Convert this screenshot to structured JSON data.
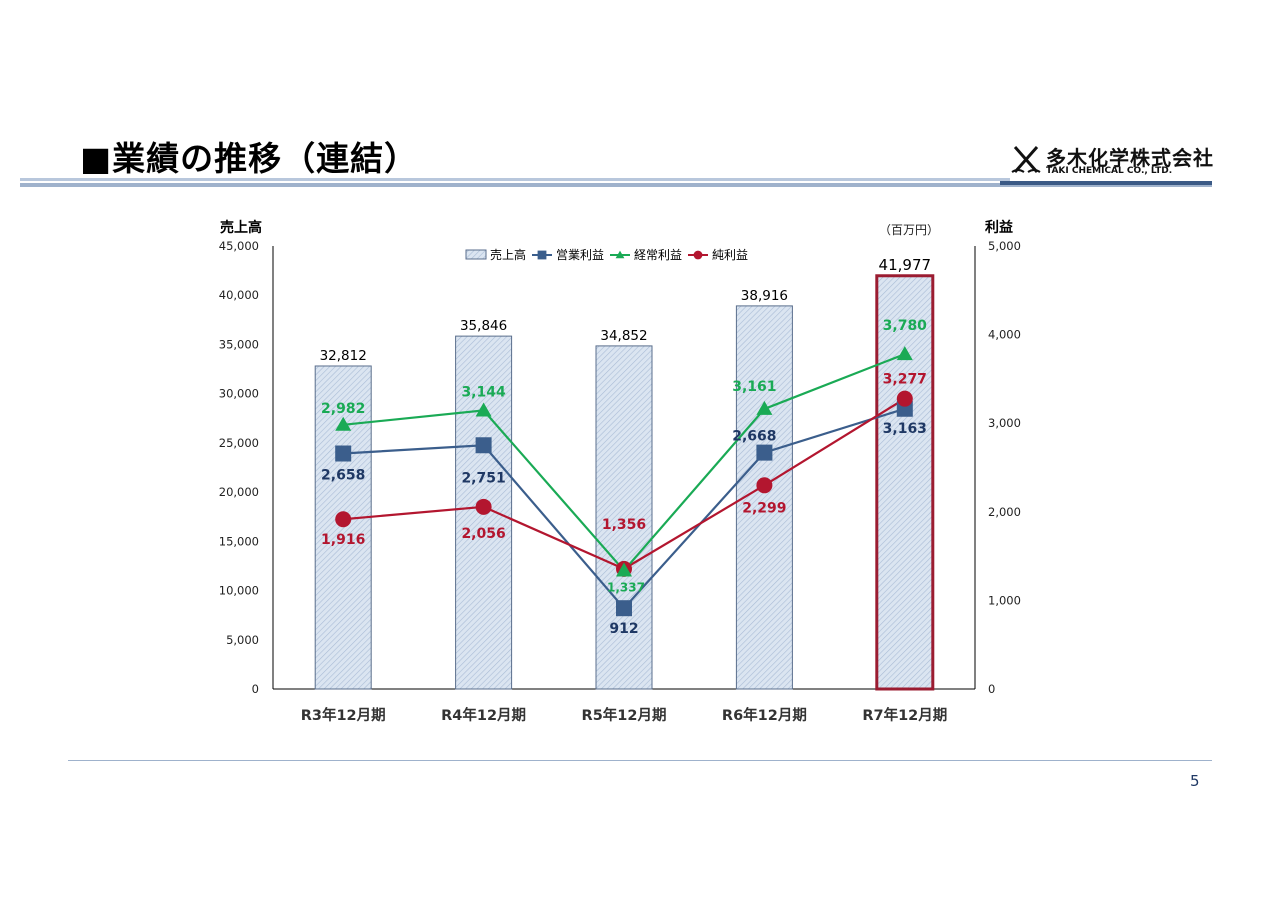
{
  "slide": {
    "title": "■業績の推移（連結）",
    "page_number": "5"
  },
  "logo": {
    "name": "多木化学株式会社",
    "sub": "TAKI CHEMICAL CO., LTD."
  },
  "colors": {
    "bar_fill": "#dbe5f1",
    "bar_stroke": "#5a6e8c",
    "bar_highlight_stroke": "#9b1c31",
    "operating": "#3b5e8c",
    "ordinary": "#1aaa55",
    "net": "#b3162f",
    "operating_label": "#1f3864",
    "ordinary_label": "#1aaa55",
    "net_label": "#b3162f",
    "axis": "#000000",
    "rule": "#9fb2cc"
  },
  "chart_data": {
    "type": "bar",
    "categories": [
      "R3年12月期",
      "R4年12月期",
      "R5年12月期",
      "R6年12月期",
      "R7年12月期"
    ],
    "unit_label": "（百万円）",
    "y_left": {
      "label": "売上高",
      "range": [
        0,
        45000
      ],
      "ticks": [
        "0",
        "5,000",
        "10,000",
        "15,000",
        "20,000",
        "25,000",
        "30,000",
        "35,000",
        "40,000",
        "45,000"
      ]
    },
    "y_right": {
      "label": "利益",
      "range": [
        0,
        5000
      ],
      "ticks": [
        "0",
        "1,000",
        "2,000",
        "3,000",
        "4,000",
        "5,000"
      ]
    },
    "legend_placement": "top-center",
    "grid": false,
    "bars": {
      "name": "売上高",
      "axis": "left",
      "values": [
        32812,
        35846,
        34852,
        38916,
        41977
      ],
      "labels": [
        "32,812",
        "35,846",
        "34,852",
        "38,916",
        "41,977"
      ],
      "highlight_index": 4
    },
    "series": [
      {
        "name": "営業利益",
        "type": "line",
        "axis": "right",
        "marker": "square",
        "color_key": "operating",
        "values": [
          2658,
          2751,
          912,
          2668,
          3163
        ],
        "labels": [
          "2,658",
          "2,751",
          "912",
          "2,668",
          "3,163"
        ]
      },
      {
        "name": "経常利益",
        "type": "line",
        "axis": "right",
        "marker": "triangle",
        "color_key": "ordinary",
        "values": [
          2982,
          3144,
          1337,
          3161,
          3780
        ],
        "labels": [
          "2,982",
          "3,144",
          "1,337",
          "3,161",
          "3,780"
        ]
      },
      {
        "name": "純利益",
        "type": "line",
        "axis": "right",
        "marker": "circle",
        "color_key": "net",
        "values": [
          1916,
          2056,
          1356,
          2299,
          3277
        ],
        "labels": [
          "1,916",
          "2,056",
          "1,356",
          "2,299",
          "3,277"
        ]
      }
    ]
  }
}
